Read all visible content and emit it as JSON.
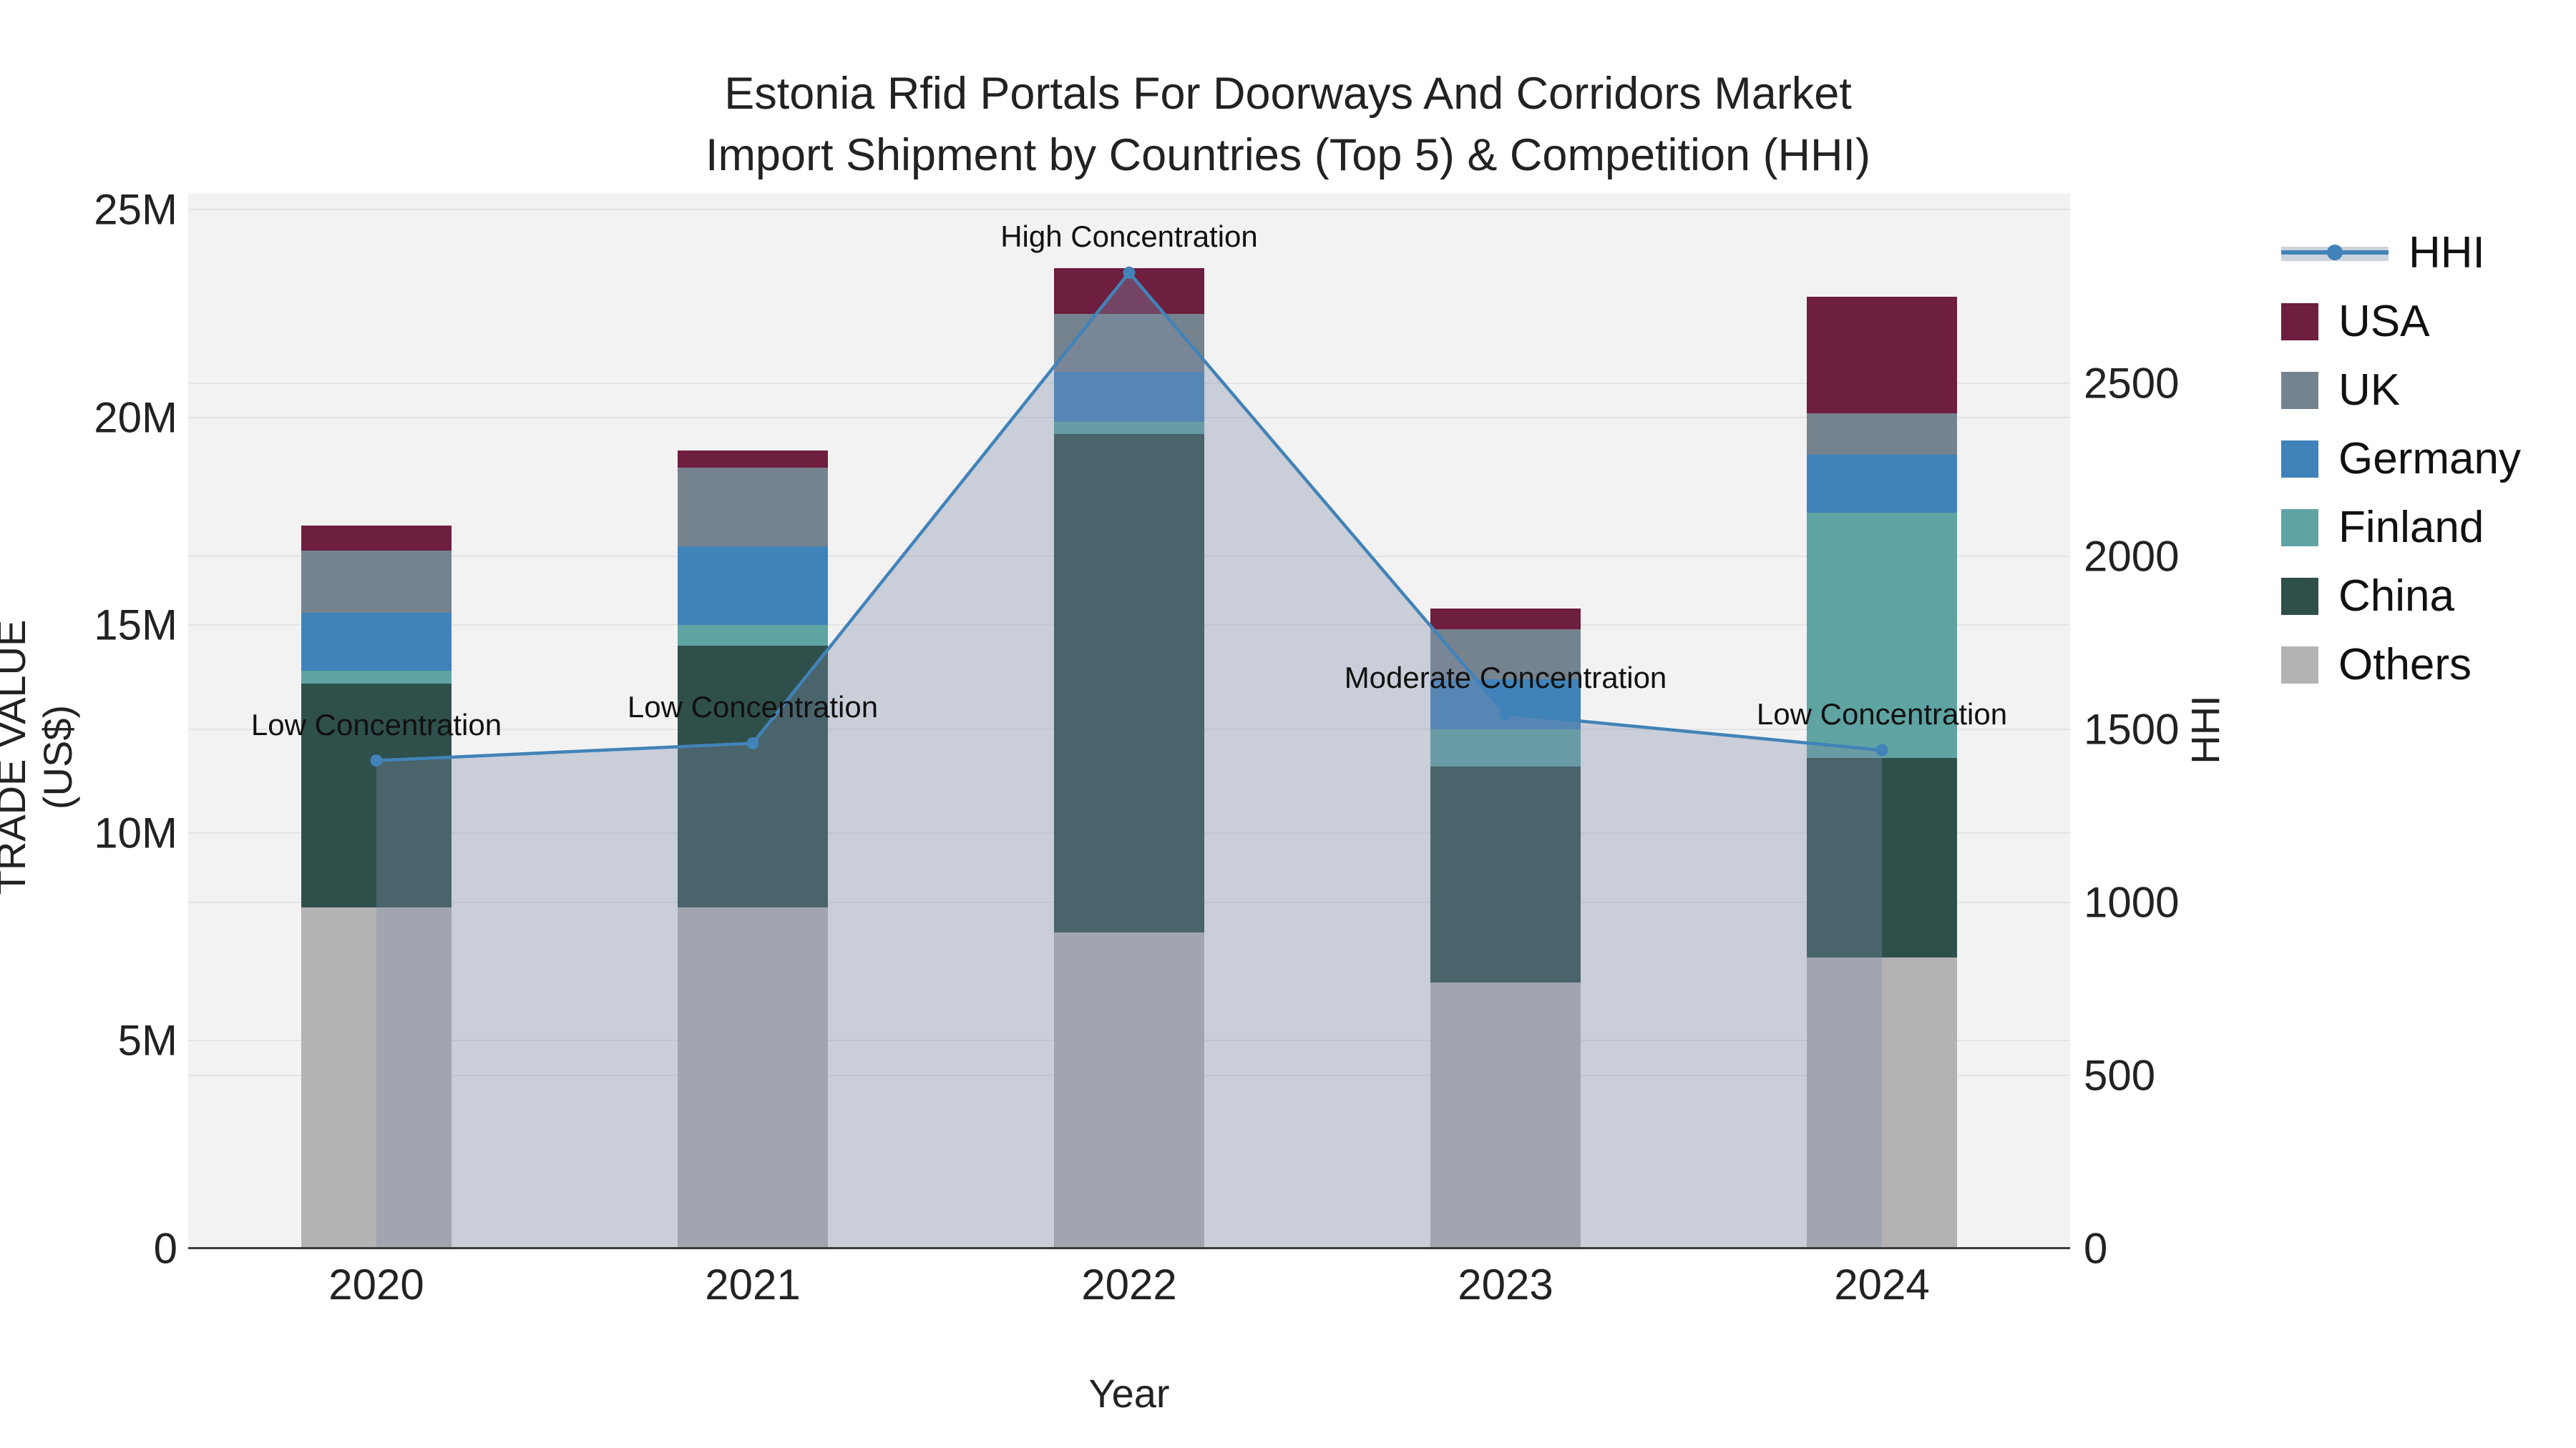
{
  "title": {
    "line1": "Estonia Rfid Portals For Doorways And Corridors Market",
    "line2": "Import Shipment by Countries (Top 5) & Competition (HHI)"
  },
  "axes": {
    "y_left": {
      "title": "TRADE VALUE (US$)",
      "tick_labels": [
        "0",
        "5M",
        "10M",
        "15M",
        "20M",
        "25M"
      ],
      "tick_values": [
        0,
        5,
        10,
        15,
        20,
        25
      ]
    },
    "y_right": {
      "title": "HHI",
      "tick_labels": [
        "0",
        "500",
        "1000",
        "1500",
        "2000",
        "2500"
      ],
      "tick_values": [
        0,
        500,
        1000,
        1500,
        2000,
        2500
      ]
    },
    "x": {
      "title": "Year",
      "tick_labels": [
        "2020",
        "2021",
        "2022",
        "2023",
        "2024"
      ]
    }
  },
  "legend": {
    "items": [
      {
        "label": "HHI",
        "swatch": "line",
        "color": "#4183b8"
      },
      {
        "label": "USA",
        "swatch": "square",
        "color": "#6e1e3e"
      },
      {
        "label": "UK",
        "swatch": "square",
        "color": "#75838f"
      },
      {
        "label": "Germany",
        "swatch": "square",
        "color": "#3f83ba"
      },
      {
        "label": "Finland",
        "swatch": "square",
        "color": "#5fa3a3"
      },
      {
        "label": "China",
        "swatch": "square",
        "color": "#2f4f4b"
      },
      {
        "label": "Others",
        "swatch": "square",
        "color": "#b3b3b3"
      }
    ]
  },
  "chart_data": {
    "type": "bar+line",
    "categories": [
      "2020",
      "2021",
      "2022",
      "2023",
      "2024"
    ],
    "unit": "million US$",
    "stack_order_bottom_to_top": [
      "Others",
      "China",
      "Finland",
      "Germany",
      "UK",
      "USA"
    ],
    "series": [
      {
        "name": "Others",
        "color": "#b3b3b3",
        "values": [
          8.2,
          8.2,
          7.6,
          6.4,
          7.0
        ]
      },
      {
        "name": "China",
        "color": "#2f4f4b",
        "values": [
          5.4,
          6.3,
          12.0,
          5.2,
          4.8
        ]
      },
      {
        "name": "Finland",
        "color": "#5fa3a3",
        "values": [
          0.3,
          0.5,
          0.3,
          0.9,
          5.9
        ]
      },
      {
        "name": "Germany",
        "color": "#3f83ba",
        "values": [
          1.4,
          1.9,
          1.2,
          1.2,
          1.4
        ]
      },
      {
        "name": "UK",
        "color": "#75838f",
        "values": [
          1.5,
          1.9,
          1.4,
          1.2,
          1.0
        ]
      },
      {
        "name": "USA",
        "color": "#6e1e3e",
        "values": [
          0.6,
          0.4,
          1.1,
          0.5,
          2.8
        ]
      }
    ],
    "bar_totals": [
      17.4,
      19.2,
      23.6,
      15.4,
      22.9
    ],
    "hhi": {
      "name": "HHI",
      "values": [
        1410,
        1460,
        2820,
        1545,
        1440
      ],
      "line_color": "#4183b8",
      "fill_color": "rgba(125,140,170,0.35)"
    },
    "annotations": [
      {
        "x_index": 0,
        "text": "Low Concentration"
      },
      {
        "x_index": 1,
        "text": "Low Concentration"
      },
      {
        "x_index": 2,
        "text": "High Concentration"
      },
      {
        "x_index": 3,
        "text": "Moderate Concentration"
      },
      {
        "x_index": 4,
        "text": "Low Concentration"
      }
    ],
    "ylim": [
      0,
      25.4
    ],
    "y2lim": [
      0,
      3050
    ],
    "grid": true,
    "legend_position": "right"
  }
}
